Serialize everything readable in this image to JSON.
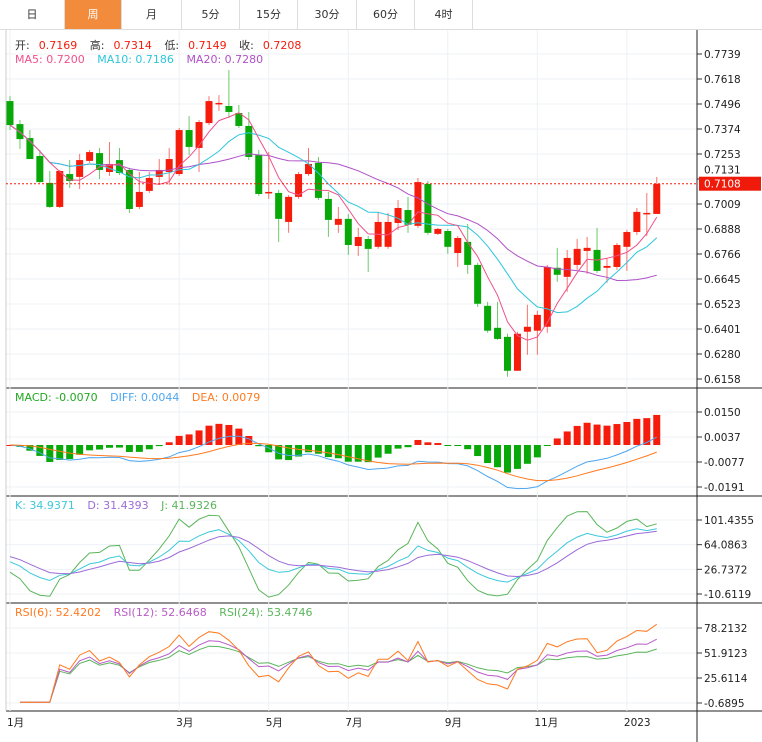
{
  "tabs": [
    {
      "label": "日",
      "active": false
    },
    {
      "label": "周",
      "active": true
    },
    {
      "label": "月",
      "active": false
    },
    {
      "label": "5分",
      "active": false
    },
    {
      "label": "15分",
      "active": false
    },
    {
      "label": "30分",
      "active": false
    },
    {
      "label": "60分",
      "active": false
    },
    {
      "label": "4时",
      "active": false
    }
  ],
  "ohlc_legend": {
    "open_label": "开:",
    "open": "0.7169",
    "high_label": "高:",
    "high": "0.7314",
    "low_label": "低:",
    "low": "0.7149",
    "close_label": "收:",
    "close": "0.7208"
  },
  "ma_legend": {
    "ma5": "MA5: 0.7200",
    "ma10": "MA10: 0.7186",
    "ma20": "MA20: 0.7280"
  },
  "macd_legend": {
    "macd": "MACD: -0.0070",
    "diff": "DIFF: 0.0044",
    "dea": "DEA: 0.0079"
  },
  "kdj_legend": {
    "k": "K: 34.9371",
    "d": "D: 31.4393",
    "j": "J: 41.9326"
  },
  "rsi_legend": {
    "rsi6": "RSI(6): 52.4202",
    "rsi12": "RSI(12): 52.6468",
    "rsi24": "RSI(24): 53.4746"
  },
  "colors": {
    "up": "#f51c0c",
    "down": "#08a808",
    "accent": "#f28b3c",
    "ma5": "#f0508a",
    "ma10": "#2ec6dc",
    "ma20": "#b050c8",
    "diff": "#4ea6f0",
    "dea": "#ff7a1f",
    "macd_label": "#22a822",
    "k": "#3cc8dc",
    "d": "#9b6bd8",
    "j": "#5ab55a",
    "rsi6": "#ff7a1f",
    "rsi12": "#b95cc8",
    "rsi24": "#5ab55a"
  },
  "chart_data": {
    "type": "candlestick",
    "current_price": "0.7108",
    "price_axis": {
      "ticks": [
        "0.7739",
        "0.7618",
        "0.7496",
        "0.7374",
        "0.7253",
        "0.7131",
        "0.7009",
        "0.6888",
        "0.6766",
        "0.6645",
        "0.6523",
        "0.6401",
        "0.6280",
        "0.6158"
      ],
      "range": [
        0.6158,
        0.7739
      ]
    },
    "macd_axis": {
      "ticks": [
        "0.0150",
        "0.0037",
        "-0.0077",
        "-0.0191"
      ],
      "range": [
        -0.0191,
        0.015
      ]
    },
    "kdj_axis": {
      "ticks": [
        "101.4355",
        "64.0863",
        "26.7372",
        "-10.6119"
      ],
      "range": [
        -10.6119,
        101.4355
      ]
    },
    "rsi_axis": {
      "ticks": [
        "78.2132",
        "51.9123",
        "25.6114",
        "-0.6895"
      ],
      "range": [
        -0.6895,
        78.2132
      ]
    },
    "x_labels": [
      {
        "label": "1月",
        "index": 0
      },
      {
        "label": "3月",
        "index": 17
      },
      {
        "label": "5月",
        "index": 26
      },
      {
        "label": "7月",
        "index": 34
      },
      {
        "label": "9月",
        "index": 44
      },
      {
        "label": "11月",
        "index": 53
      },
      {
        "label": "2023",
        "index": 62
      }
    ],
    "candles_ohlc": [
      [
        0.751,
        0.7534,
        0.7369,
        0.7393
      ],
      [
        0.7398,
        0.7418,
        0.7277,
        0.7325
      ],
      [
        0.733,
        0.7369,
        0.7228,
        0.7228
      ],
      [
        0.7243,
        0.7272,
        0.7112,
        0.7116
      ],
      [
        0.7112,
        0.717,
        0.699,
        0.6995
      ],
      [
        0.6995,
        0.7175,
        0.699,
        0.717
      ],
      [
        0.7155,
        0.7223,
        0.7087,
        0.7121
      ],
      [
        0.7141,
        0.7253,
        0.7082,
        0.7223
      ],
      [
        0.7219,
        0.7272,
        0.7209,
        0.7262
      ],
      [
        0.7257,
        0.7282,
        0.7131,
        0.7175
      ],
      [
        0.7165,
        0.7311,
        0.7146,
        0.7204
      ],
      [
        0.7223,
        0.7282,
        0.715,
        0.716
      ],
      [
        0.7175,
        0.7185,
        0.6966,
        0.6985
      ],
      [
        0.6995,
        0.7165,
        0.6985,
        0.7068
      ],
      [
        0.7073,
        0.7165,
        0.7063,
        0.7136
      ],
      [
        0.7141,
        0.7228,
        0.7102,
        0.7175
      ],
      [
        0.7165,
        0.7282,
        0.7102,
        0.7228
      ],
      [
        0.7155,
        0.7379,
        0.7146,
        0.7369
      ],
      [
        0.7369,
        0.7437,
        0.7248,
        0.7287
      ],
      [
        0.7282,
        0.7418,
        0.7165,
        0.7408
      ],
      [
        0.7403,
        0.7534,
        0.7393,
        0.751
      ],
      [
        0.7496,
        0.7539,
        0.7462,
        0.7501
      ],
      [
        0.7486,
        0.7661,
        0.7428,
        0.7457
      ],
      [
        0.7452,
        0.7491,
        0.7379,
        0.7389
      ],
      [
        0.7389,
        0.7457,
        0.7223,
        0.7238
      ],
      [
        0.7248,
        0.7272,
        0.7049,
        0.7058
      ],
      [
        0.7063,
        0.7262,
        0.7034,
        0.7068
      ],
      [
        0.7063,
        0.7078,
        0.6825,
        0.6937
      ],
      [
        0.6922,
        0.7053,
        0.6869,
        0.7044
      ],
      [
        0.7044,
        0.7165,
        0.7034,
        0.7155
      ],
      [
        0.7155,
        0.7282,
        0.7146,
        0.7204
      ],
      [
        0.7209,
        0.7238,
        0.7029,
        0.7039
      ],
      [
        0.7034,
        0.7068,
        0.6849,
        0.6932
      ],
      [
        0.6908,
        0.6995,
        0.6869,
        0.6937
      ],
      [
        0.6937,
        0.6961,
        0.6762,
        0.681
      ],
      [
        0.6805,
        0.6893,
        0.6757,
        0.6849
      ],
      [
        0.6839,
        0.6854,
        0.6679,
        0.6791
      ],
      [
        0.6801,
        0.6971,
        0.6791,
        0.6922
      ],
      [
        0.6801,
        0.6966,
        0.6791,
        0.6922
      ],
      [
        0.6917,
        0.7029,
        0.6883,
        0.699
      ],
      [
        0.698,
        0.7044,
        0.6869,
        0.6908
      ],
      [
        0.6903,
        0.7136,
        0.6893,
        0.7116
      ],
      [
        0.7107,
        0.7121,
        0.6859,
        0.6869
      ],
      [
        0.6864,
        0.6893,
        0.6859,
        0.6888
      ],
      [
        0.6878,
        0.6888,
        0.6767,
        0.6801
      ],
      [
        0.6771,
        0.6854,
        0.6703,
        0.6844
      ],
      [
        0.6825,
        0.6912,
        0.6669,
        0.6713
      ],
      [
        0.6713,
        0.6723,
        0.6509,
        0.6524
      ],
      [
        0.6514,
        0.6533,
        0.6383,
        0.6393
      ],
      [
        0.6407,
        0.6533,
        0.6348,
        0.6353
      ],
      [
        0.6363,
        0.6378,
        0.6169,
        0.6198
      ],
      [
        0.6198,
        0.6388,
        0.6198,
        0.6378
      ],
      [
        0.6388,
        0.6519,
        0.6276,
        0.6412
      ],
      [
        0.6393,
        0.649,
        0.6276,
        0.647
      ],
      [
        0.6412,
        0.6713,
        0.6383,
        0.6703
      ],
      [
        0.6699,
        0.6796,
        0.6631,
        0.6665
      ],
      [
        0.6655,
        0.6786,
        0.6582,
        0.6747
      ],
      [
        0.6713,
        0.6839,
        0.6689,
        0.6791
      ],
      [
        0.6781,
        0.6849,
        0.6669,
        0.6796
      ],
      [
        0.6786,
        0.6893,
        0.6674,
        0.6684
      ],
      [
        0.6699,
        0.6747,
        0.6626,
        0.6708
      ],
      [
        0.6703,
        0.682,
        0.6689,
        0.681
      ],
      [
        0.6801,
        0.6883,
        0.6684,
        0.6873
      ],
      [
        0.6873,
        0.699,
        0.6859,
        0.6971
      ],
      [
        0.6961,
        0.7063,
        0.6854,
        0.6966
      ],
      [
        0.6961,
        0.7141,
        0.6961,
        0.7107
      ]
    ]
  }
}
